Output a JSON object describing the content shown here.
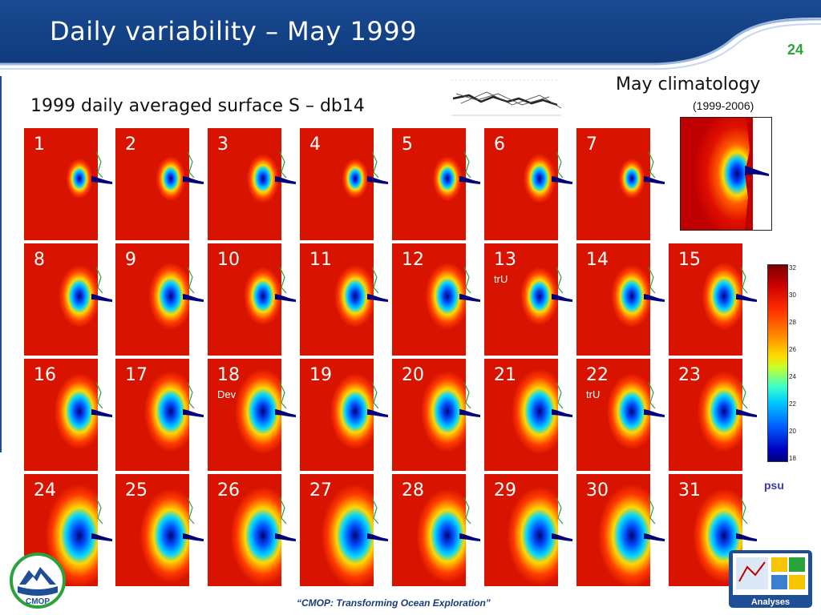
{
  "header": {
    "title": "Daily variability – May 1999",
    "page_number": "24"
  },
  "subtitle": "1999 daily averaged surface S – db14",
  "climatology": {
    "title": "May climatology",
    "years": "(1999-2006)"
  },
  "tiles": [
    {
      "day": "1",
      "note": ""
    },
    {
      "day": "2",
      "note": ""
    },
    {
      "day": "3",
      "note": ""
    },
    {
      "day": "4",
      "note": ""
    },
    {
      "day": "5",
      "note": ""
    },
    {
      "day": "6",
      "note": ""
    },
    {
      "day": "7",
      "note": ""
    },
    {
      "day": "8",
      "note": ""
    },
    {
      "day": "9",
      "note": ""
    },
    {
      "day": "10",
      "note": ""
    },
    {
      "day": "11",
      "note": ""
    },
    {
      "day": "12",
      "note": ""
    },
    {
      "day": "13",
      "note": "trU"
    },
    {
      "day": "14",
      "note": ""
    },
    {
      "day": "15",
      "note": ""
    },
    {
      "day": "16",
      "note": ""
    },
    {
      "day": "17",
      "note": ""
    },
    {
      "day": "18",
      "note": "Dev"
    },
    {
      "day": "19",
      "note": ""
    },
    {
      "day": "20",
      "note": ""
    },
    {
      "day": "21",
      "note": ""
    },
    {
      "day": "22",
      "note": "trU"
    },
    {
      "day": "23",
      "note": ""
    },
    {
      "day": "24",
      "note": ""
    },
    {
      "day": "25",
      "note": ""
    },
    {
      "day": "26",
      "note": ""
    },
    {
      "day": "27",
      "note": ""
    },
    {
      "day": "28",
      "note": ""
    },
    {
      "day": "29",
      "note": ""
    },
    {
      "day": "30",
      "note": ""
    },
    {
      "day": "31",
      "note": ""
    }
  ],
  "colorbar": {
    "ticks": [
      "32",
      "30",
      "28",
      "26",
      "24",
      "22",
      "20",
      "18"
    ],
    "unit": "psu"
  },
  "colors": {
    "header_blue": "#1d4e96",
    "plume_red": "#d81400",
    "accent_green": "#2aa33a"
  },
  "footer": {
    "tagline": "“CMOP: Transforming Ocean Exploration”",
    "logo_text": "CMOP",
    "analyses_label": "Analyses"
  }
}
